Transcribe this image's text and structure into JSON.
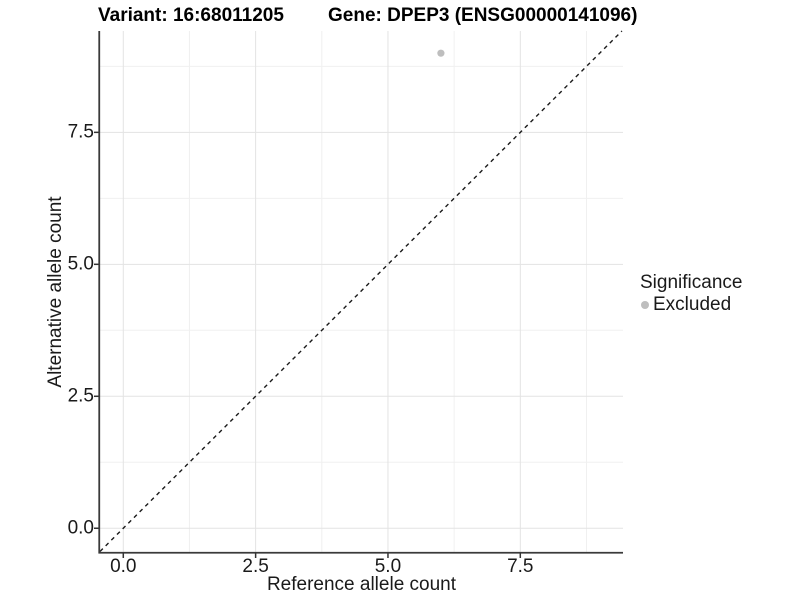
{
  "titles": {
    "variant": "Variant: 16:68011205",
    "gene": "Gene: DPEP3 (ENSG00000141096)"
  },
  "axes": {
    "x_label": "Reference allele count",
    "y_label": "Alternative allele count"
  },
  "legend": {
    "title": "Significance",
    "items": [
      {
        "label": "Excluded",
        "color": "#bebebe"
      }
    ]
  },
  "chart_data": {
    "type": "scatter",
    "title": "Variant: 16:68011205   Gene: DPEP3 (ENSG00000141096)",
    "xlabel": "Reference allele count",
    "ylabel": "Alternative allele count",
    "series": [
      {
        "name": "Excluded",
        "points": [
          {
            "x": 6,
            "y": 9
          }
        ],
        "color": "#bebebe",
        "point_radius": 3.6
      }
    ],
    "reference_line": {
      "kind": "identity",
      "slope": 1,
      "intercept": 0,
      "style": "dashed",
      "color": "#1a1a1a"
    },
    "x_ticks": [
      0.0,
      2.5,
      5.0,
      7.5
    ],
    "y_ticks": [
      0.0,
      2.5,
      5.0,
      7.5
    ],
    "x_minor_ticks": [
      1.25,
      3.75,
      6.25,
      8.75
    ],
    "y_minor_ticks": [
      1.25,
      3.75,
      6.25,
      8.75
    ],
    "tick_label_decimals": 1,
    "xlim": [
      -0.44,
      9.44
    ],
    "ylim": [
      -0.45,
      9.42
    ],
    "grid": true,
    "legend_position": "right",
    "colors": {
      "background": "#ffffff",
      "grid_major": "#e3e3e3",
      "grid_minor": "#f0f0f0",
      "axis_line": "#3a3a3a",
      "tick_mark": "#333333"
    }
  }
}
